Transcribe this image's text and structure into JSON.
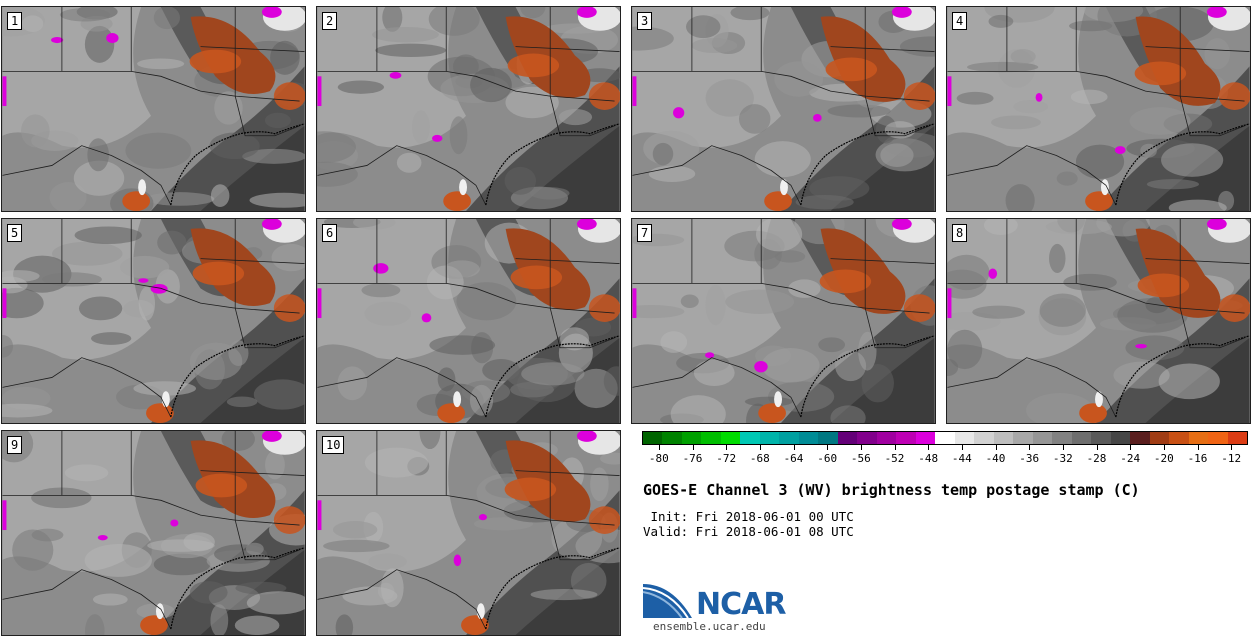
{
  "panels": [
    {
      "label": "1"
    },
    {
      "label": "2"
    },
    {
      "label": "3"
    },
    {
      "label": "4"
    },
    {
      "label": "5"
    },
    {
      "label": "6"
    },
    {
      "label": "7"
    },
    {
      "label": "8"
    },
    {
      "label": "9"
    },
    {
      "label": "10"
    }
  ],
  "colorbar": {
    "colors": [
      "#006400",
      "#008200",
      "#00a000",
      "#00be00",
      "#00dc00",
      "#00c8b4",
      "#00b4aa",
      "#00a0a0",
      "#008c96",
      "#007882",
      "#640078",
      "#82008c",
      "#a000a0",
      "#be00b4",
      "#dc00dc",
      "#ffffff",
      "#e8e8e8",
      "#d2d2d2",
      "#bebebe",
      "#a8a8a8",
      "#969696",
      "#828282",
      "#6e6e6e",
      "#5a5a5a",
      "#464646",
      "#5a1e1e",
      "#a03c14",
      "#c85014",
      "#e66e14",
      "#f06414",
      "#dc3c14"
    ],
    "ticks": [
      "-80",
      "-76",
      "-72",
      "-68",
      "-64",
      "-60",
      "-56",
      "-52",
      "-48",
      "-44",
      "-40",
      "-36",
      "-32",
      "-28",
      "-24",
      "-20",
      "-16",
      "-12"
    ],
    "range": [
      -82,
      -10
    ]
  },
  "title": "GOES-E Channel 3 (WV) brightness temp postage stamp (C)",
  "init": " Init: Fri 2018-06-01 00 UTC",
  "valid": "Valid: Fri 2018-06-01 08 UTC",
  "logo": {
    "text": "NCAR",
    "url": "ensemble.ucar.edu"
  }
}
